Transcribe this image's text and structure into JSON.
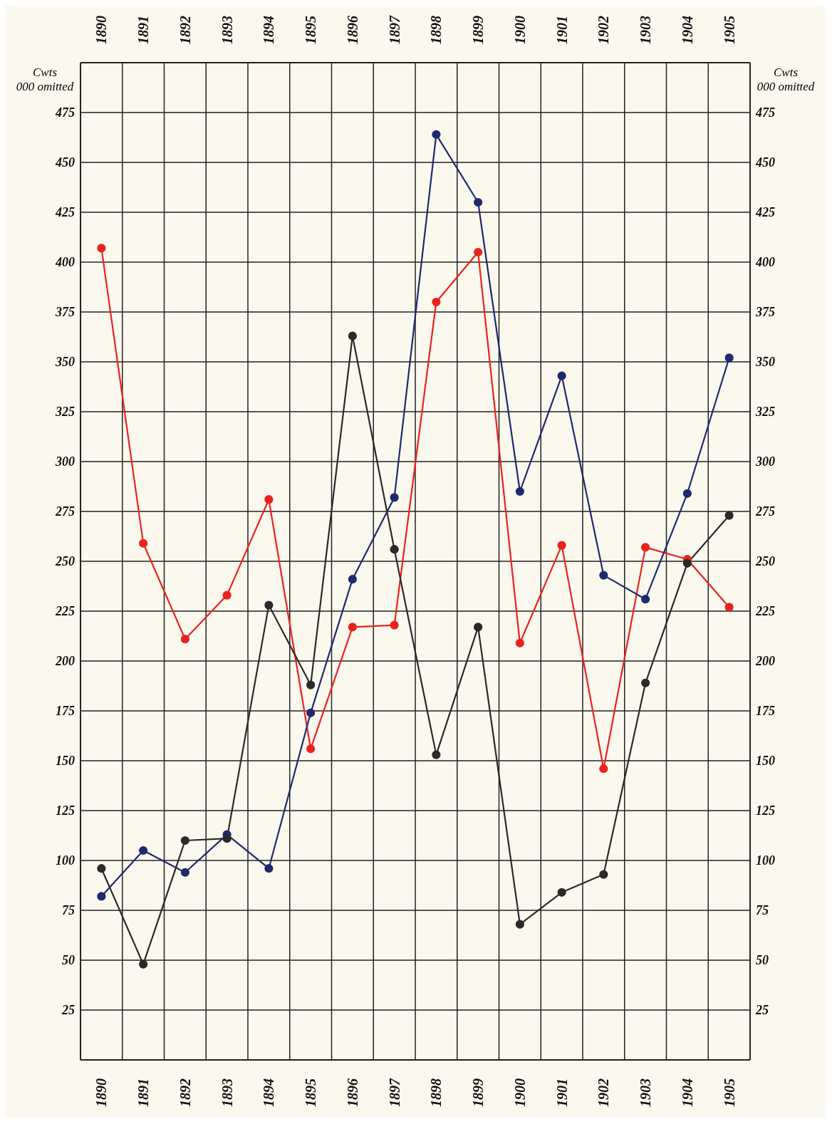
{
  "chart_data": {
    "type": "line",
    "ylabel": "Cwts\n000 omitted",
    "y2label": "Cwts\n000 omitted",
    "categories": [
      "1890",
      "1891",
      "1892",
      "1893",
      "1894",
      "1895",
      "1896",
      "1897",
      "1898",
      "1899",
      "1900",
      "1901",
      "1902",
      "1903",
      "1904",
      "1905"
    ],
    "series": [
      {
        "color": "#e8231e",
        "values": [
          407,
          259,
          211,
          233,
          281,
          156,
          217,
          218,
          380,
          405,
          209,
          258,
          146,
          257,
          251,
          227
        ]
      },
      {
        "color": "#1f2a6e",
        "values": [
          82,
          105,
          94,
          113,
          96,
          174,
          241,
          282,
          464,
          430,
          285,
          343,
          243,
          231,
          284,
          352
        ]
      },
      {
        "color": "#2a2a2a",
        "values": [
          96,
          48,
          110,
          111,
          228,
          188,
          363,
          256,
          153,
          217,
          68,
          84,
          93,
          189,
          249,
          273
        ]
      }
    ],
    "ylim": [
      0,
      500
    ],
    "yticks": [
      25,
      50,
      75,
      100,
      125,
      150,
      175,
      200,
      225,
      250,
      275,
      300,
      325,
      350,
      375,
      400,
      425,
      450,
      475
    ],
    "y2lim": [
      0,
      500
    ],
    "y2ticks": [
      25,
      50,
      75,
      100,
      125,
      150,
      175,
      200,
      225,
      250,
      275,
      300,
      325,
      350,
      375,
      400,
      425,
      450,
      475
    ],
    "grid": true,
    "marker": "circle",
    "line_style": "solid"
  }
}
